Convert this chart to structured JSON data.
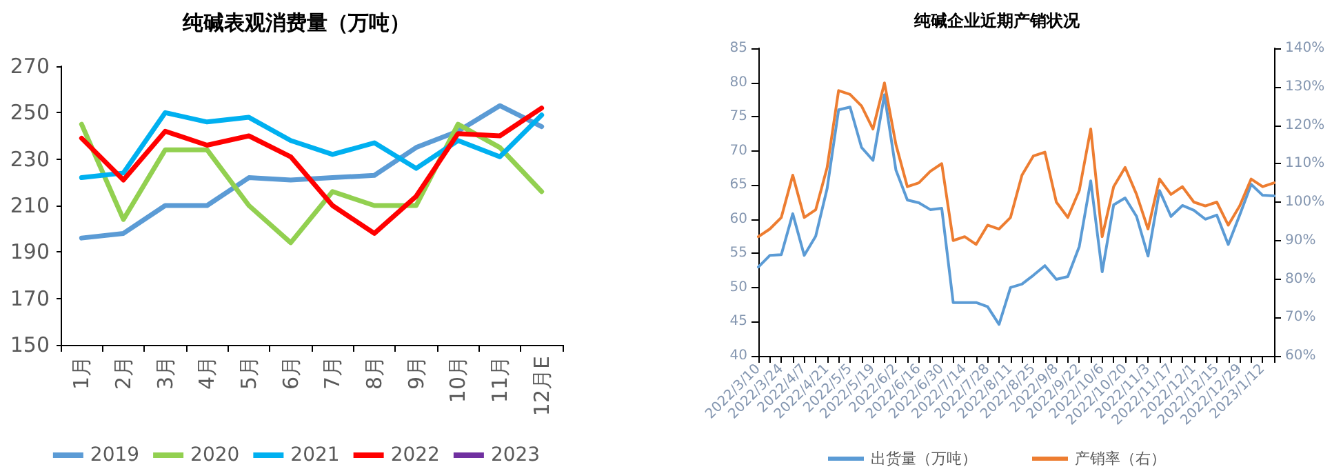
{
  "chart_data": [
    {
      "type": "line",
      "title": "纯碱表观消费量（万吨）",
      "categories": [
        "1月",
        "2月",
        "3月",
        "4月",
        "5月",
        "6月",
        "7月",
        "8月",
        "9月",
        "10月",
        "11月",
        "12月E"
      ],
      "ylim": [
        150,
        270
      ],
      "yticks": [
        150,
        170,
        190,
        210,
        230,
        250,
        270
      ],
      "legend": "bottom",
      "marker": "none",
      "series": [
        {
          "name": "2019",
          "color": "#5b9bd5",
          "values": [
            196,
            198,
            210,
            210,
            222,
            221,
            222,
            223,
            235,
            242,
            253,
            244
          ]
        },
        {
          "name": "2020",
          "color": "#92d050",
          "values": [
            245,
            204,
            234,
            234,
            210,
            194,
            216,
            210,
            210,
            245,
            235,
            216
          ]
        },
        {
          "name": "2021",
          "color": "#00b0f0",
          "values": [
            222,
            224,
            250,
            246,
            248,
            238,
            232,
            237,
            226,
            238,
            231,
            249
          ]
        },
        {
          "name": "2022",
          "color": "#ff0000",
          "values": [
            239,
            221,
            242,
            236,
            240,
            231,
            210,
            198,
            214,
            241,
            240,
            252
          ]
        },
        {
          "name": "2023",
          "color": "#7030a0",
          "values": [
            null,
            null,
            null,
            null,
            null,
            null,
            null,
            null,
            null,
            null,
            null,
            null
          ]
        }
      ]
    },
    {
      "type": "line",
      "title": "纯碱企业近期产销状况",
      "categories": [
        "2022/3/10",
        null,
        "2022/3/24",
        null,
        "2022/4/7",
        null,
        "2022/4/21",
        null,
        "2022/5/5",
        null,
        "2022/5/19",
        null,
        "2022/6/2",
        null,
        "2022/6/16",
        null,
        "2022/6/30",
        null,
        "2022/7/14",
        null,
        "2022/7/28",
        null,
        "2022/8/11",
        null,
        "2022/8/25",
        null,
        "2022/9/8",
        null,
        "2022/9/22",
        null,
        "2022/10/6",
        null,
        "2022/10/20",
        null,
        "2022/11/3",
        null,
        "2022/11/17",
        null,
        "2022/12/1",
        null,
        "2022/12/15",
        null,
        "2022/12/29",
        null,
        "2023/1/12",
        null
      ],
      "ylim": [
        40,
        85
      ],
      "yticks": [
        40,
        45,
        50,
        55,
        60,
        65,
        70,
        75,
        80,
        85
      ],
      "y2lim": [
        60,
        140
      ],
      "y2ticks": [
        {
          "value": 60,
          "label": "60%"
        },
        {
          "value": 70,
          "label": "70%"
        },
        {
          "value": 80,
          "label": "80%"
        },
        {
          "value": 90,
          "label": "90%"
        },
        {
          "value": 100,
          "label": "100%"
        },
        {
          "value": 110,
          "label": "110%"
        },
        {
          "value": 120,
          "label": "120%"
        },
        {
          "value": 130,
          "label": "130%"
        },
        {
          "value": 140,
          "label": "140%"
        }
      ],
      "legend": "bottom",
      "marker": "none",
      "series": [
        {
          "name": "出货量（万吨）",
          "color": "#5b9bd5",
          "values": [
            53,
            54.7,
            54.8,
            60.8,
            54.7,
            57.5,
            64.5,
            76,
            76.4,
            70.5,
            68.6,
            78.2,
            67.2,
            62.8,
            62.4,
            61.4,
            61.6,
            47.8,
            47.8,
            47.8,
            47.2,
            44.6,
            50,
            50.5,
            51.8,
            53.2,
            51.2,
            51.6,
            56,
            65.6,
            52.3,
            62.1,
            63.1,
            60.4,
            54.6,
            64.2,
            60.4,
            62,
            61.3,
            60,
            60.6,
            56.3,
            60.6,
            65.1,
            63.5,
            63.4
          ]
        },
        {
          "name": "产销率（右）",
          "color": "#ed7d31",
          "axis": "y2",
          "values": [
            91,
            93,
            96,
            107,
            96,
            98,
            109,
            129,
            128,
            125,
            119,
            131,
            115,
            104,
            105,
            108,
            110,
            90,
            91,
            89,
            94,
            93,
            96,
            107,
            112,
            113,
            100,
            96,
            103,
            119,
            91,
            104,
            109,
            102,
            93,
            106,
            102,
            104,
            100,
            99,
            100,
            94,
            99,
            106,
            104,
            105
          ]
        }
      ]
    }
  ]
}
